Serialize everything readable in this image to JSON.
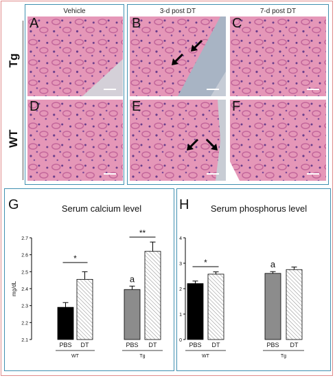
{
  "figure": {
    "micrographs": {
      "col_headers": [
        "Vehicle",
        "3-d post DT",
        "7-d post DT"
      ],
      "row_labels": [
        "Tg",
        "WT"
      ],
      "panels": [
        {
          "letter": "A",
          "row": "Tg",
          "col": "Vehicle",
          "arrows": 0
        },
        {
          "letter": "B",
          "row": "Tg",
          "col": "3-d post DT",
          "arrows": 2
        },
        {
          "letter": "C",
          "row": "Tg",
          "col": "7-d post DT",
          "arrows": 0
        },
        {
          "letter": "D",
          "row": "WT",
          "col": "Vehicle",
          "arrows": 0
        },
        {
          "letter": "E",
          "row": "WT",
          "col": "3-d post DT",
          "arrows": 2
        },
        {
          "letter": "F",
          "row": "WT",
          "col": "7-d post DT",
          "arrows": 0
        }
      ]
    },
    "colors": {
      "panel_border": "#3f8fb0",
      "outer_border": "#e08a8a",
      "he_pink": "#e392b4",
      "he_purple": "#8a4f9e"
    }
  },
  "chart_data": [
    {
      "type": "bar",
      "panel_letter": "G",
      "title": "Serum calcium level",
      "ylabel": "mg/dL",
      "ylim": [
        2.1,
        2.7
      ],
      "yticks": [
        "2.1",
        "2.2",
        "2.3",
        "2.4",
        "2.5",
        "2.6",
        "2.7"
      ],
      "categories": [
        "PBS",
        "DT",
        "PBS",
        "DT"
      ],
      "groups": [
        "WT",
        "Tg"
      ],
      "values": [
        2.29,
        2.455,
        2.395,
        2.62
      ],
      "errors": [
        0.028,
        0.045,
        0.02,
        0.055
      ],
      "fills": [
        "black",
        "hatched",
        "gray",
        "hatched"
      ],
      "annotations": {
        "sig_wt": "*",
        "sig_tg": "**",
        "letter_tg_pbs": "a"
      }
    },
    {
      "type": "bar",
      "panel_letter": "H",
      "title": "Serum phosphorus level",
      "ylabel": "",
      "ylim": [
        0,
        4
      ],
      "yticks": [
        "0",
        "1",
        "2",
        "3",
        "4"
      ],
      "categories": [
        "PBS",
        "DT",
        "PBS",
        "DT"
      ],
      "groups": [
        "WT",
        "Tg"
      ],
      "values": [
        2.2,
        2.57,
        2.6,
        2.75
      ],
      "errors": [
        0.1,
        0.09,
        0.07,
        0.1
      ],
      "fills": [
        "black",
        "hatched",
        "gray",
        "hatched"
      ],
      "annotations": {
        "sig_wt": "*",
        "letter_tg_pbs": "a"
      }
    }
  ]
}
